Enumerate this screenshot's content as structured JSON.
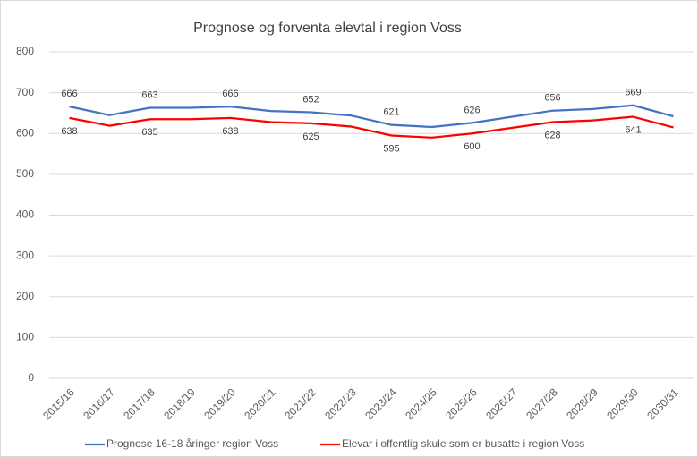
{
  "chart_data": {
    "type": "line",
    "title": "Prognose og forventa elevtal i region Voss",
    "categories": [
      "2015/16",
      "2016/17",
      "2017/18",
      "2018/19",
      "2019/20",
      "2020/21",
      "2021/22",
      "2022/23",
      "2023/24",
      "2024/25",
      "2025/26",
      "2026/27",
      "2027/28",
      "2028/29",
      "2029/30",
      "2030/31"
    ],
    "series": [
      {
        "name": "Prognose 16-18 åringer region Voss",
        "color": "#4472c4",
        "values": [
          666,
          645,
          663,
          663,
          666,
          655,
          652,
          644,
          621,
          616,
          626,
          641,
          656,
          660,
          669,
          642
        ],
        "value_labels": [
          "666",
          null,
          "663",
          null,
          "666",
          null,
          "652",
          null,
          "621",
          null,
          "626",
          null,
          "656",
          null,
          "669",
          null
        ]
      },
      {
        "name": "Elevar i offentlig skule som er busatte i region Voss",
        "color": "#ff0000",
        "values": [
          638,
          619,
          635,
          635,
          638,
          628,
          625,
          617,
          595,
          590,
          600,
          614,
          628,
          632,
          641,
          615
        ],
        "value_labels": [
          "638",
          null,
          "635",
          null,
          "638",
          null,
          "625",
          null,
          "595",
          null,
          "600",
          null,
          "628",
          null,
          "641",
          null
        ]
      }
    ],
    "ylim": [
      0,
      800
    ],
    "yticks": [
      0,
      100,
      200,
      300,
      400,
      500,
      600,
      700,
      800
    ],
    "grid": true,
    "legend": "bottom"
  }
}
